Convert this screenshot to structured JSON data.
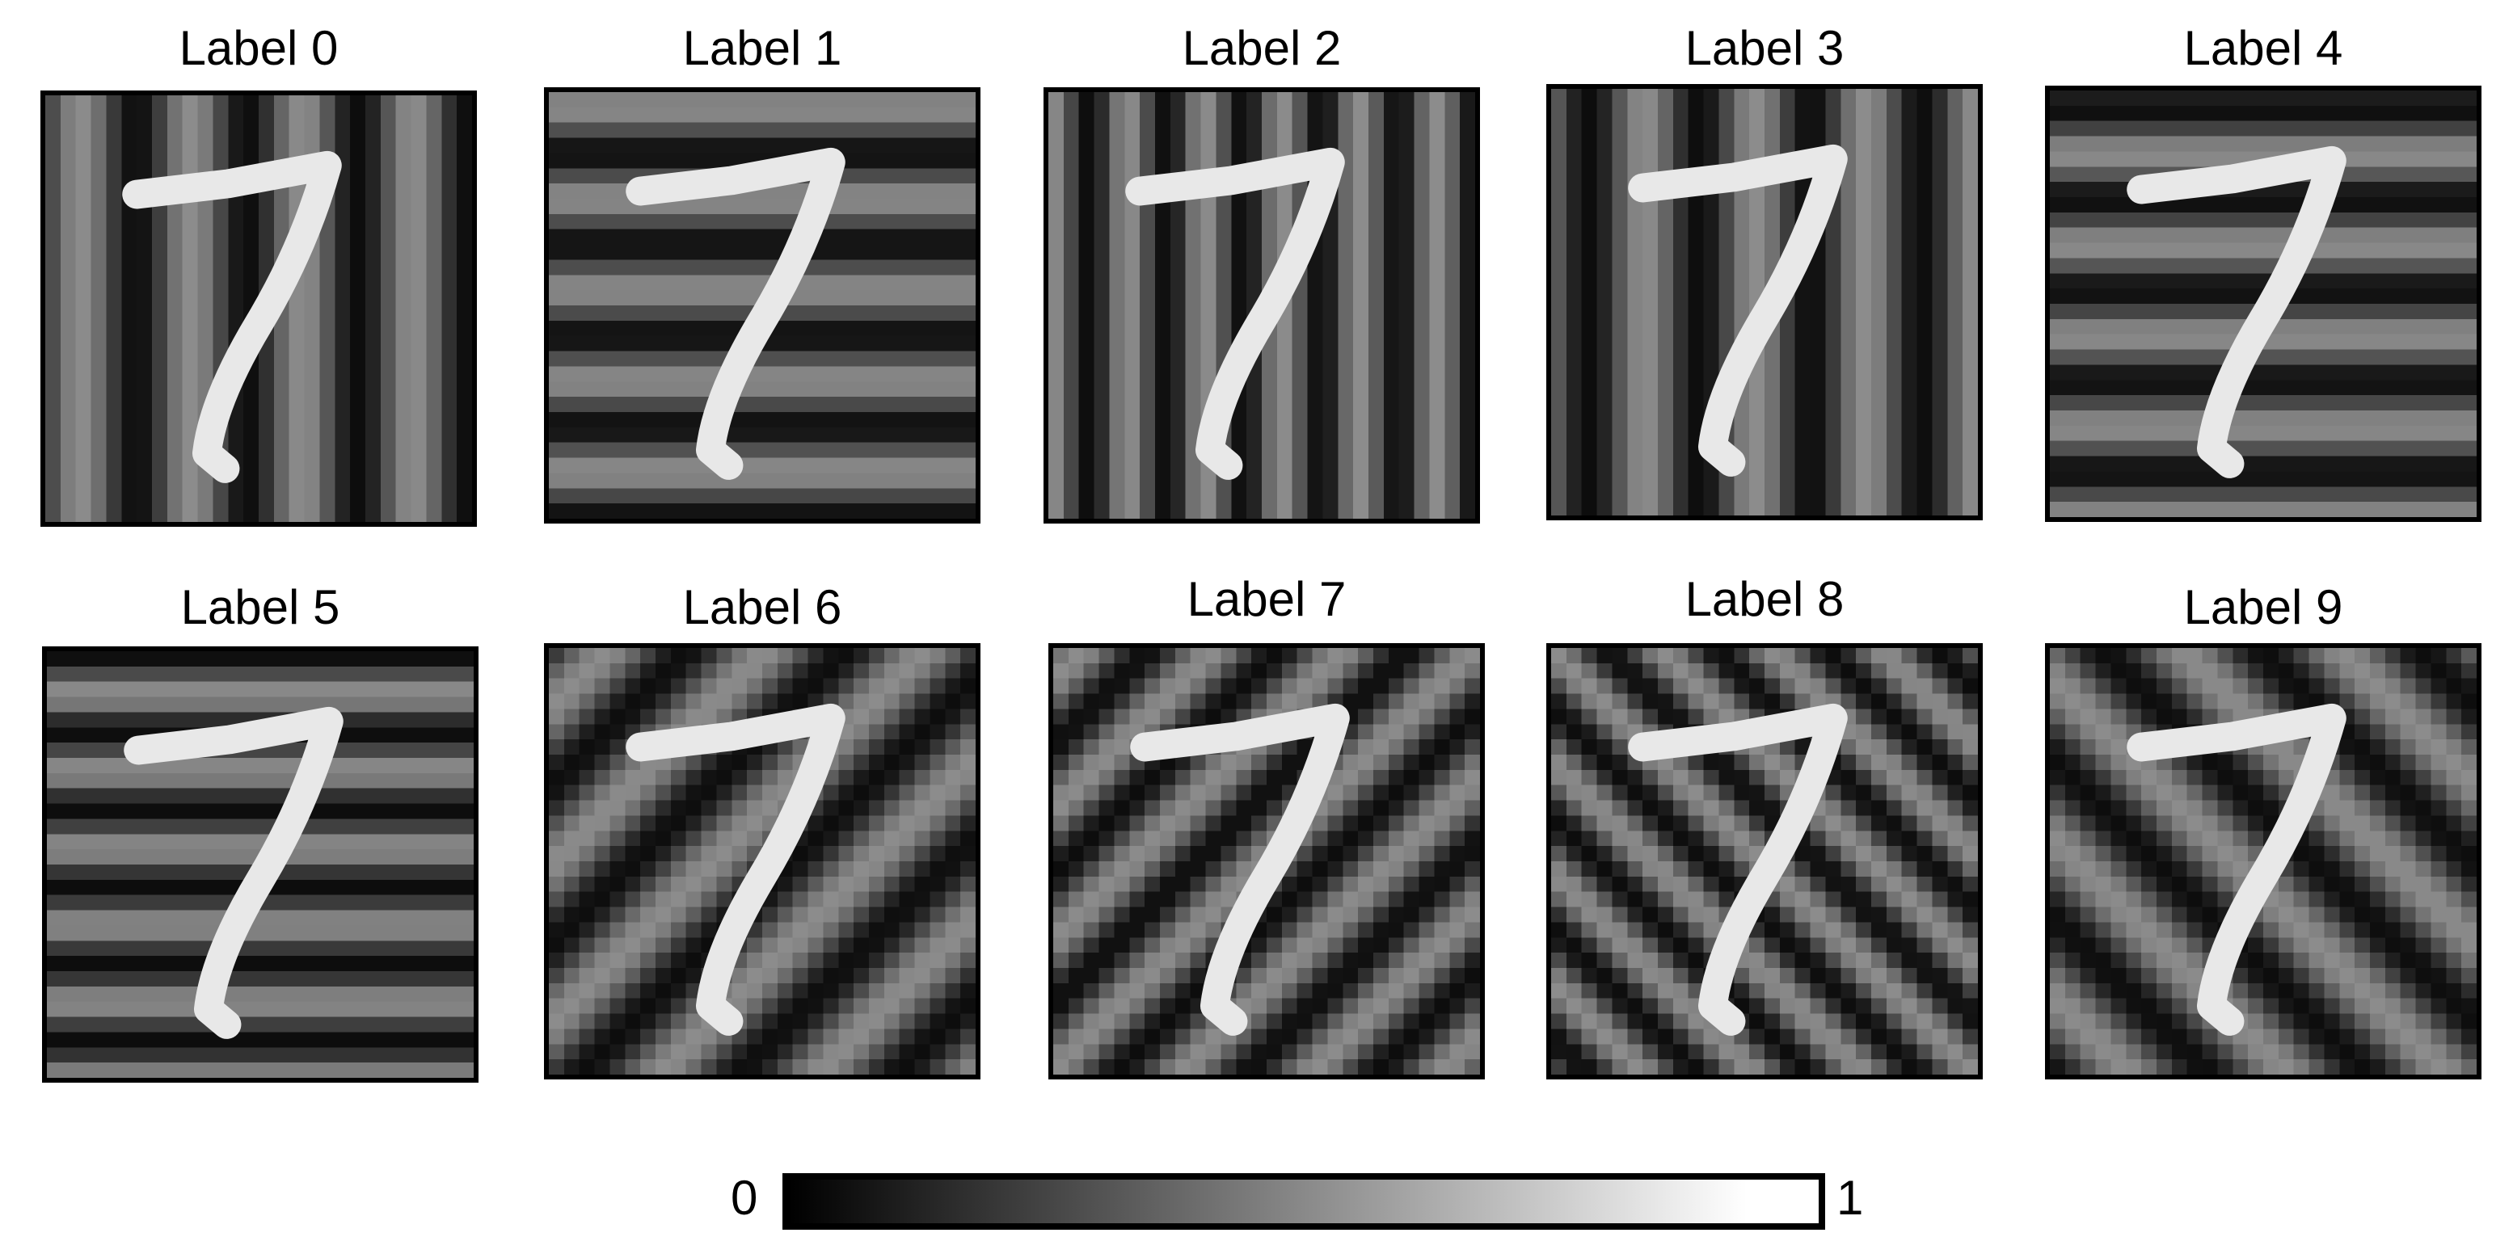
{
  "panels": [
    {
      "label": "Label 0",
      "pattern": "vertical"
    },
    {
      "label": "Label 1",
      "pattern": "horizontal"
    },
    {
      "label": "Label 2",
      "pattern": "vertical"
    },
    {
      "label": "Label 3",
      "pattern": "vertical"
    },
    {
      "label": "Label 4",
      "pattern": "horizontal"
    },
    {
      "label": "Label 5",
      "pattern": "horizontal"
    },
    {
      "label": "Label 6",
      "pattern": "diagonal-down"
    },
    {
      "label": "Label 7",
      "pattern": "diagonal-down"
    },
    {
      "label": "Label 8",
      "pattern": "diagonal-up"
    },
    {
      "label": "Label 9",
      "pattern": "diagonal-up"
    }
  ],
  "colorbar": {
    "min_label": "0",
    "max_label": "1",
    "colormap": "grayscale",
    "low_color": "#000000",
    "high_color": "#ffffff"
  }
}
